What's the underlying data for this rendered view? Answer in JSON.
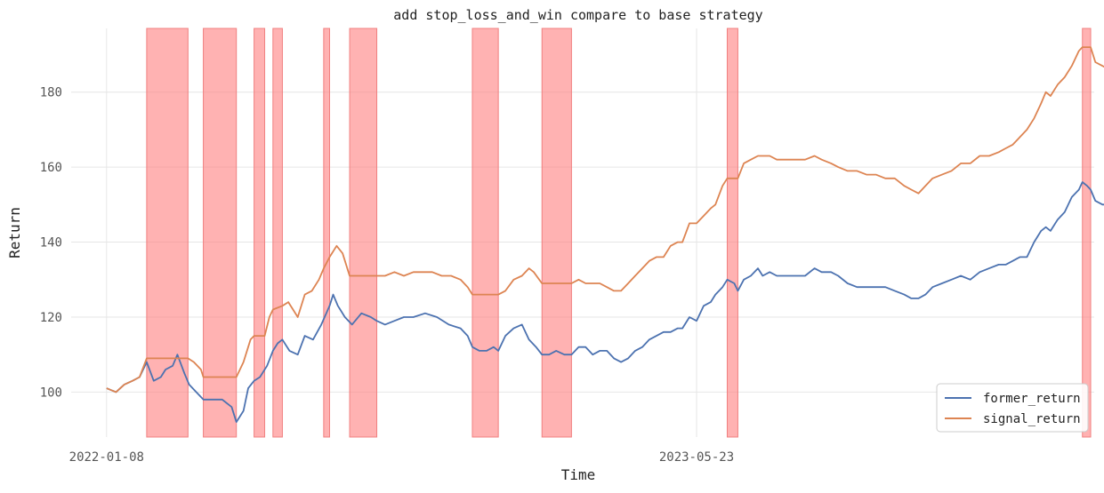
{
  "chart_data": {
    "type": "line",
    "title": "add stop_loss_and_win compare to base strategy",
    "xlabel": "Time",
    "ylabel": "Return",
    "x_tick_labels": [
      "2022-01-08",
      "2023-05-23"
    ],
    "x_ticks_at_index": [
      0,
      500
    ],
    "x_range_index": [
      -30,
      837
    ],
    "y_ticks": [
      100,
      120,
      140,
      160,
      180
    ],
    "ylim": [
      88,
      197
    ],
    "grid": true,
    "legend_position": "lower-right",
    "shaded_spans_color": "#ff7f7f",
    "shaded_spans_index": [
      [
        34,
        69
      ],
      [
        82,
        110
      ],
      [
        125,
        134
      ],
      [
        141,
        149
      ],
      [
        184,
        189
      ],
      [
        206,
        229
      ],
      [
        310,
        332
      ],
      [
        369,
        394
      ],
      [
        526,
        535
      ],
      [
        827,
        834
      ]
    ],
    "series": [
      {
        "name": "former_return",
        "color": "#4c72b0",
        "points": [
          [
            0,
            101
          ],
          [
            8,
            100
          ],
          [
            15,
            102
          ],
          [
            22,
            103
          ],
          [
            28,
            104
          ],
          [
            34,
            108
          ],
          [
            40,
            103
          ],
          [
            46,
            104
          ],
          [
            50,
            106
          ],
          [
            56,
            107
          ],
          [
            60,
            110
          ],
          [
            66,
            105
          ],
          [
            70,
            102
          ],
          [
            76,
            100
          ],
          [
            82,
            98
          ],
          [
            90,
            98
          ],
          [
            98,
            98
          ],
          [
            106,
            96
          ],
          [
            110,
            92
          ],
          [
            116,
            95
          ],
          [
            120,
            101
          ],
          [
            125,
            103
          ],
          [
            130,
            104
          ],
          [
            136,
            107
          ],
          [
            141,
            111
          ],
          [
            145,
            113
          ],
          [
            149,
            114
          ],
          [
            155,
            111
          ],
          [
            162,
            110
          ],
          [
            168,
            115
          ],
          [
            175,
            114
          ],
          [
            182,
            118
          ],
          [
            189,
            123
          ],
          [
            192,
            126
          ],
          [
            196,
            123
          ],
          [
            202,
            120
          ],
          [
            208,
            118
          ],
          [
            216,
            121
          ],
          [
            224,
            120
          ],
          [
            229,
            119
          ],
          [
            236,
            118
          ],
          [
            244,
            119
          ],
          [
            252,
            120
          ],
          [
            260,
            120
          ],
          [
            270,
            121
          ],
          [
            280,
            120
          ],
          [
            290,
            118
          ],
          [
            300,
            117
          ],
          [
            306,
            115
          ],
          [
            310,
            112
          ],
          [
            316,
            111
          ],
          [
            322,
            111
          ],
          [
            328,
            112
          ],
          [
            332,
            111
          ],
          [
            338,
            115
          ],
          [
            345,
            117
          ],
          [
            352,
            118
          ],
          [
            358,
            114
          ],
          [
            364,
            112
          ],
          [
            369,
            110
          ],
          [
            375,
            110
          ],
          [
            381,
            111
          ],
          [
            388,
            110
          ],
          [
            394,
            110
          ],
          [
            400,
            112
          ],
          [
            406,
            112
          ],
          [
            412,
            110
          ],
          [
            418,
            111
          ],
          [
            424,
            111
          ],
          [
            430,
            109
          ],
          [
            436,
            108
          ],
          [
            442,
            109
          ],
          [
            448,
            111
          ],
          [
            454,
            112
          ],
          [
            460,
            114
          ],
          [
            466,
            115
          ],
          [
            472,
            116
          ],
          [
            478,
            116
          ],
          [
            484,
            117
          ],
          [
            488,
            117
          ],
          [
            494,
            120
          ],
          [
            500,
            119
          ],
          [
            506,
            123
          ],
          [
            512,
            124
          ],
          [
            516,
            126
          ],
          [
            522,
            128
          ],
          [
            526,
            130
          ],
          [
            532,
            129
          ],
          [
            535,
            127
          ],
          [
            540,
            130
          ],
          [
            546,
            131
          ],
          [
            552,
            133
          ],
          [
            556,
            131
          ],
          [
            562,
            132
          ],
          [
            568,
            131
          ],
          [
            574,
            131
          ],
          [
            580,
            131
          ],
          [
            586,
            131
          ],
          [
            592,
            131
          ],
          [
            600,
            133
          ],
          [
            606,
            132
          ],
          [
            614,
            132
          ],
          [
            620,
            131
          ],
          [
            628,
            129
          ],
          [
            636,
            128
          ],
          [
            644,
            128
          ],
          [
            652,
            128
          ],
          [
            660,
            128
          ],
          [
            668,
            127
          ],
          [
            676,
            126
          ],
          [
            682,
            125
          ],
          [
            688,
            125
          ],
          [
            694,
            126
          ],
          [
            700,
            128
          ],
          [
            708,
            129
          ],
          [
            716,
            130
          ],
          [
            724,
            131
          ],
          [
            732,
            130
          ],
          [
            740,
            132
          ],
          [
            748,
            133
          ],
          [
            756,
            134
          ],
          [
            762,
            134
          ],
          [
            768,
            135
          ],
          [
            774,
            136
          ],
          [
            780,
            136
          ],
          [
            786,
            140
          ],
          [
            792,
            143
          ],
          [
            796,
            144
          ],
          [
            800,
            143
          ],
          [
            806,
            146
          ],
          [
            812,
            148
          ],
          [
            818,
            152
          ],
          [
            824,
            154
          ],
          [
            827,
            156
          ],
          [
            831,
            155
          ],
          [
            834,
            154
          ],
          [
            838,
            151
          ],
          [
            844,
            150
          ],
          [
            850,
            150
          ],
          [
            855,
            149
          ],
          [
            857,
            148
          ],
          [
            859,
            149
          ]
        ]
      },
      {
        "name": "signal_return",
        "color": "#dd8452",
        "points": [
          [
            0,
            101
          ],
          [
            8,
            100
          ],
          [
            15,
            102
          ],
          [
            22,
            103
          ],
          [
            28,
            104
          ],
          [
            34,
            109
          ],
          [
            40,
            109
          ],
          [
            50,
            109
          ],
          [
            60,
            109
          ],
          [
            69,
            109
          ],
          [
            74,
            108
          ],
          [
            80,
            106
          ],
          [
            82,
            104
          ],
          [
            90,
            104
          ],
          [
            100,
            104
          ],
          [
            110,
            104
          ],
          [
            116,
            108
          ],
          [
            122,
            114
          ],
          [
            125,
            115
          ],
          [
            134,
            115
          ],
          [
            138,
            120
          ],
          [
            141,
            122
          ],
          [
            149,
            123
          ],
          [
            154,
            124
          ],
          [
            158,
            122
          ],
          [
            162,
            120
          ],
          [
            168,
            126
          ],
          [
            174,
            127
          ],
          [
            180,
            130
          ],
          [
            184,
            133
          ],
          [
            189,
            136
          ],
          [
            195,
            139
          ],
          [
            200,
            137
          ],
          [
            206,
            131
          ],
          [
            215,
            131
          ],
          [
            220,
            131
          ],
          [
            229,
            131
          ],
          [
            236,
            131
          ],
          [
            244,
            132
          ],
          [
            252,
            131
          ],
          [
            260,
            132
          ],
          [
            268,
            132
          ],
          [
            276,
            132
          ],
          [
            284,
            131
          ],
          [
            292,
            131
          ],
          [
            300,
            130
          ],
          [
            306,
            128
          ],
          [
            310,
            126
          ],
          [
            320,
            126
          ],
          [
            332,
            126
          ],
          [
            338,
            127
          ],
          [
            345,
            130
          ],
          [
            352,
            131
          ],
          [
            358,
            133
          ],
          [
            362,
            132
          ],
          [
            369,
            129
          ],
          [
            380,
            129
          ],
          [
            394,
            129
          ],
          [
            400,
            130
          ],
          [
            406,
            129
          ],
          [
            412,
            129
          ],
          [
            418,
            129
          ],
          [
            424,
            128
          ],
          [
            430,
            127
          ],
          [
            436,
            127
          ],
          [
            442,
            129
          ],
          [
            448,
            131
          ],
          [
            454,
            133
          ],
          [
            460,
            135
          ],
          [
            466,
            136
          ],
          [
            472,
            136
          ],
          [
            478,
            139
          ],
          [
            484,
            140
          ],
          [
            488,
            140
          ],
          [
            494,
            145
          ],
          [
            500,
            145
          ],
          [
            506,
            147
          ],
          [
            512,
            149
          ],
          [
            516,
            150
          ],
          [
            522,
            155
          ],
          [
            526,
            157
          ],
          [
            535,
            157
          ],
          [
            540,
            161
          ],
          [
            546,
            162
          ],
          [
            552,
            163
          ],
          [
            556,
            163
          ],
          [
            562,
            163
          ],
          [
            568,
            162
          ],
          [
            574,
            162
          ],
          [
            580,
            162
          ],
          [
            586,
            162
          ],
          [
            592,
            162
          ],
          [
            600,
            163
          ],
          [
            606,
            162
          ],
          [
            614,
            161
          ],
          [
            620,
            160
          ],
          [
            628,
            159
          ],
          [
            636,
            159
          ],
          [
            644,
            158
          ],
          [
            652,
            158
          ],
          [
            660,
            157
          ],
          [
            668,
            157
          ],
          [
            676,
            155
          ],
          [
            682,
            154
          ],
          [
            688,
            153
          ],
          [
            694,
            155
          ],
          [
            700,
            157
          ],
          [
            708,
            158
          ],
          [
            716,
            159
          ],
          [
            724,
            161
          ],
          [
            732,
            161
          ],
          [
            740,
            163
          ],
          [
            748,
            163
          ],
          [
            756,
            164
          ],
          [
            762,
            165
          ],
          [
            768,
            166
          ],
          [
            774,
            168
          ],
          [
            780,
            170
          ],
          [
            786,
            173
          ],
          [
            792,
            177
          ],
          [
            796,
            180
          ],
          [
            800,
            179
          ],
          [
            806,
            182
          ],
          [
            812,
            184
          ],
          [
            818,
            187
          ],
          [
            824,
            191
          ],
          [
            827,
            192
          ],
          [
            834,
            192
          ],
          [
            838,
            188
          ],
          [
            844,
            187
          ],
          [
            850,
            186
          ],
          [
            855,
            185
          ],
          [
            857,
            184
          ],
          [
            859,
            185
          ]
        ]
      }
    ]
  }
}
